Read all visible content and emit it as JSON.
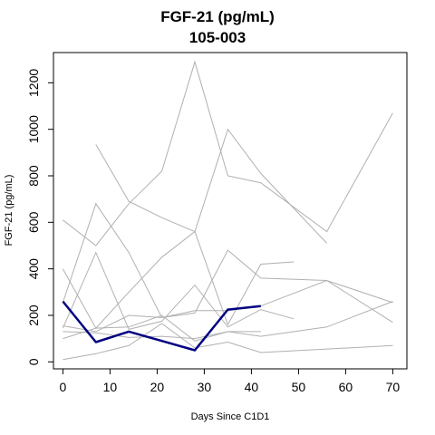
{
  "chart_data": {
    "type": "line",
    "title": "FGF-21 (pg/mL)",
    "subtitle": "105-003",
    "xlabel": "Days Since C1D1",
    "ylabel": "FGF-21 (pg/mL)",
    "xlim": [
      -2,
      73
    ],
    "ylim": [
      -30,
      1330
    ],
    "xticks": [
      0,
      10,
      20,
      30,
      40,
      50,
      60,
      70
    ],
    "yticks": [
      0,
      200,
      400,
      600,
      800,
      1000,
      1200
    ],
    "grid": false,
    "highlight_series": {
      "name": "105-003",
      "color": "#000080",
      "x": [
        0,
        7,
        14,
        21,
        28,
        35,
        42
      ],
      "y": [
        260,
        85,
        130,
        90,
        50,
        225,
        240
      ]
    },
    "series": [
      {
        "color": "#b0b0b0",
        "x": [
          7,
          14,
          21,
          28,
          35,
          42,
          56
        ],
        "y": [
          935,
          690,
          620,
          560,
          1000,
          810,
          510
        ]
      },
      {
        "color": "#b0b0b0",
        "x": [
          0,
          7,
          14,
          21,
          28,
          35,
          42,
          56,
          70
        ],
        "y": [
          610,
          500,
          680,
          820,
          1290,
          800,
          770,
          560,
          1070
        ]
      },
      {
        "color": "#b0b0b0",
        "x": [
          0,
          7,
          14,
          21,
          28,
          35,
          42,
          49
        ],
        "y": [
          400,
          145,
          300,
          450,
          560,
          160,
          420,
          430
        ]
      },
      {
        "color": "#b0b0b0",
        "x": [
          0,
          7,
          14,
          21,
          28,
          35,
          42,
          56,
          70
        ],
        "y": [
          255,
          680,
          470,
          190,
          210,
          480,
          360,
          350,
          170
        ]
      },
      {
        "color": "#b0b0b0",
        "x": [
          0,
          7,
          14,
          21,
          28,
          35,
          42,
          49
        ],
        "y": [
          145,
          470,
          140,
          175,
          330,
          150,
          225,
          185
        ]
      },
      {
        "color": "#b0b0b0",
        "x": [
          0,
          7,
          14,
          21,
          28,
          35,
          42,
          56,
          70
        ],
        "y": [
          155,
          130,
          200,
          190,
          220,
          220,
          240,
          350,
          255
        ]
      },
      {
        "color": "#b0b0b0",
        "x": [
          0,
          7,
          14,
          21,
          28,
          35,
          42,
          56,
          70
        ],
        "y": [
          100,
          145,
          150,
          200,
          90,
          130,
          110,
          150,
          260
        ]
      },
      {
        "color": "#b0b0b0",
        "x": [
          0,
          7,
          14,
          21,
          28,
          35,
          42
        ],
        "y": [
          130,
          125,
          105,
          110,
          100,
          130,
          130
        ]
      },
      {
        "color": "#b0b0b0",
        "x": [
          0,
          7,
          14,
          21,
          28,
          35,
          42,
          70
        ],
        "y": [
          10,
          35,
          70,
          165,
          60,
          85,
          40,
          70
        ]
      }
    ]
  }
}
